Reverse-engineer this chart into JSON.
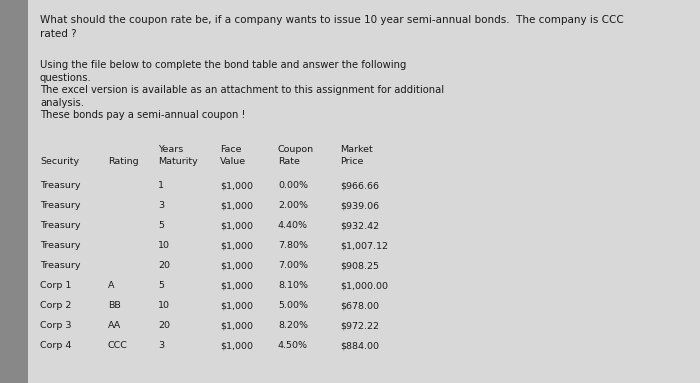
{
  "title_line1": "What should the coupon rate be, if a company wants to issue 10 year semi-annual bonds.  The company is CCC",
  "title_line2": "rated ?",
  "para1_line1": "Using the file below to complete the bond table and answer the following",
  "para1_line2": "questions.",
  "para2_line1": "The excel version is available as an attachment to this assignment for additional",
  "para2_line2": "analysis.",
  "para3": "These bonds pay a semi-annual coupon !",
  "header_row1": [
    "",
    "",
    "Years",
    "Face",
    "Coupon",
    "Market"
  ],
  "header_row2": [
    "Security",
    "Rating",
    "Maturity",
    "Value",
    "Rate",
    "Price"
  ],
  "rows": [
    [
      "Treasury",
      "",
      "1",
      "$1,000",
      "0.00%",
      "$966.66"
    ],
    [
      "Treasury",
      "",
      "3",
      "$1,000",
      "2.00%",
      "$939.06"
    ],
    [
      "Treasury",
      "",
      "5",
      "$1,000",
      "4.40%",
      "$932.42"
    ],
    [
      "Treasury",
      "",
      "10",
      "$1,000",
      "7.80%",
      "$1,007.12"
    ],
    [
      "Treasury",
      "",
      "20",
      "$1,000",
      "7.00%",
      "$908.25"
    ],
    [
      "Corp 1",
      "A",
      "5",
      "$1,000",
      "8.10%",
      "$1,000.00"
    ],
    [
      "Corp 2",
      "BB",
      "10",
      "$1,000",
      "5.00%",
      "$678.00"
    ],
    [
      "Corp 3",
      "AA",
      "20",
      "$1,000",
      "8.20%",
      "$972.22"
    ],
    [
      "Corp 4",
      "CCC",
      "3",
      "$1,000",
      "4.50%",
      "$884.00"
    ]
  ],
  "bg_color": "#c8c8c8",
  "content_bg": "#dcdcdc",
  "left_bar_color": "#888888",
  "text_color": "#1a1a1a",
  "font_size_title": 7.5,
  "font_size_body": 7.2,
  "font_size_table": 6.8
}
